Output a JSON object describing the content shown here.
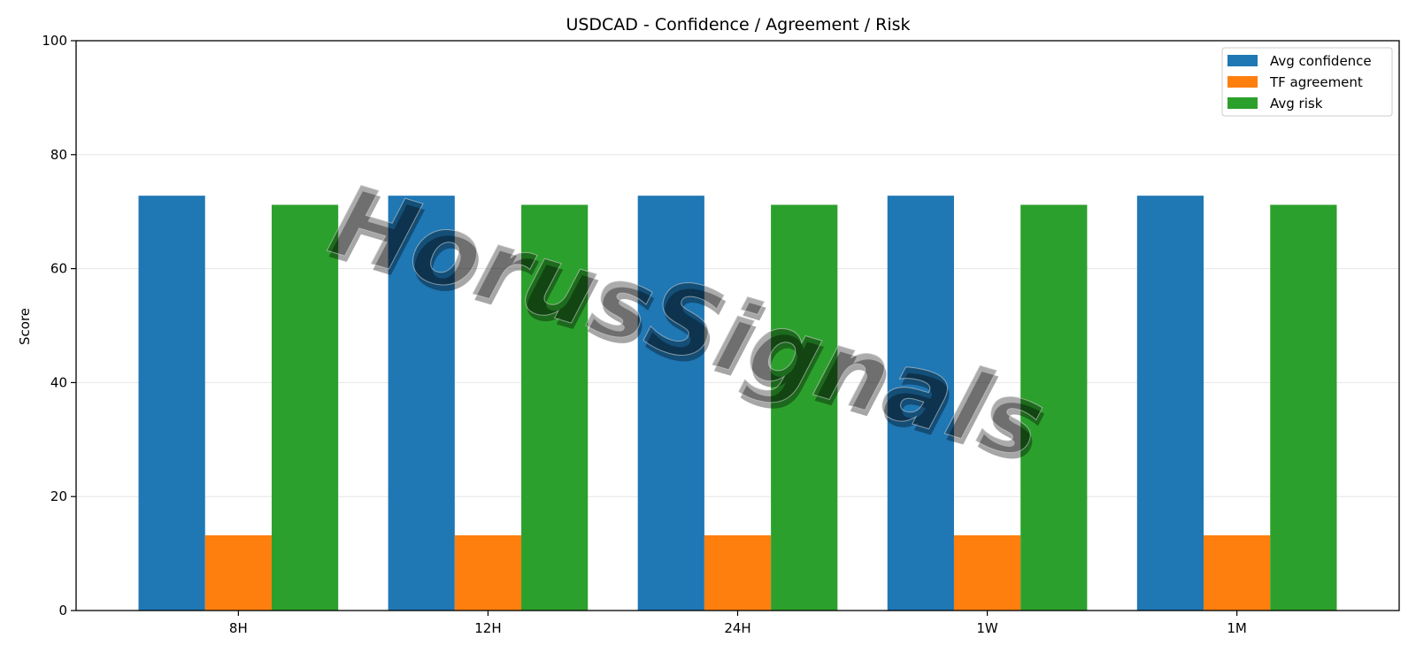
{
  "chart_data": {
    "type": "bar",
    "title": "USDCAD - Confidence / Agreement / Risk",
    "xlabel": "",
    "ylabel": "Score",
    "ylim": [
      0,
      100
    ],
    "yticks": [
      0,
      20,
      40,
      60,
      80,
      100
    ],
    "categories": [
      "8H",
      "12H",
      "24H",
      "1W",
      "1M"
    ],
    "series": [
      {
        "name": "Avg confidence",
        "color": "#1f77b4",
        "values": [
          72.8,
          72.8,
          72.8,
          72.8,
          72.8
        ]
      },
      {
        "name": "TF agreement",
        "color": "#ff7f0e",
        "values": [
          13.2,
          13.2,
          13.2,
          13.2,
          13.2
        ]
      },
      {
        "name": "Avg risk",
        "color": "#2ca02c",
        "values": [
          71.2,
          71.2,
          71.2,
          71.2,
          71.2
        ]
      }
    ],
    "grid": "y",
    "legend_position": "top-right",
    "watermark": "HorusSignals"
  }
}
